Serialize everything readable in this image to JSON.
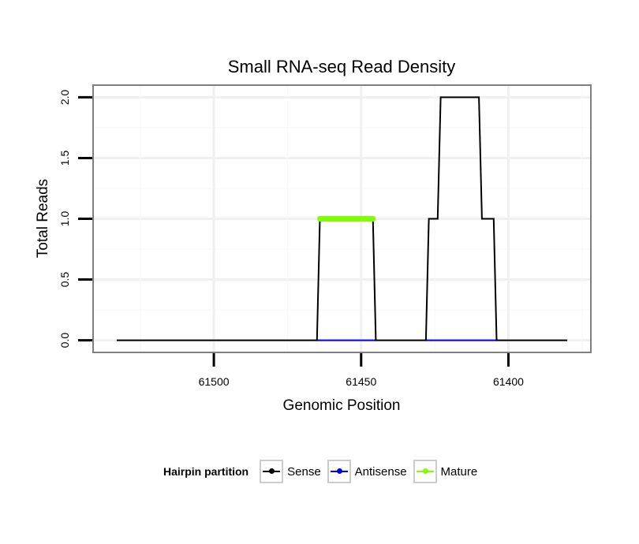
{
  "chart_data": {
    "type": "line",
    "title": "Small RNA-seq Read Density",
    "xlabel": "Genomic Position",
    "ylabel": "Total Reads",
    "x_reversed": true,
    "xlim": [
      61541,
      61372
    ],
    "ylim": [
      -0.1,
      2.1
    ],
    "x_ticks": [
      61500,
      61450,
      61400
    ],
    "x_tick_labels": [
      "61500",
      "61450",
      61400
    ],
    "y_ticks": [
      0.0,
      0.5,
      1.0,
      1.5,
      2.0
    ],
    "y_tick_labels": [
      "0.0",
      "0.5",
      "1.0",
      "1.5",
      "2.0"
    ],
    "grid": true,
    "legend": {
      "title": "Hairpin partition",
      "position": "bottom",
      "entries": [
        "Sense",
        "Antisense",
        "Mature"
      ]
    },
    "series": [
      {
        "name": "Sense",
        "color": "#000000",
        "x": [
          61533,
          61465,
          61464,
          61446,
          61445,
          61428,
          61427,
          61424,
          61423,
          61410,
          61409,
          61405,
          61404,
          61380
        ],
        "y": [
          0,
          0,
          1,
          1,
          0,
          0,
          1,
          1,
          2,
          2,
          1,
          1,
          0,
          0
        ]
      },
      {
        "name": "Antisense",
        "color": "#0000ff",
        "x": [
          61465,
          61445,
          61428,
          61404
        ],
        "y": [
          0,
          0,
          0,
          0
        ],
        "segments": [
          [
            0,
            1
          ],
          [
            2,
            3
          ]
        ]
      },
      {
        "name": "Mature",
        "color": "#7fff00",
        "x": [
          61464,
          61446
        ],
        "y": [
          1,
          1
        ]
      }
    ]
  }
}
